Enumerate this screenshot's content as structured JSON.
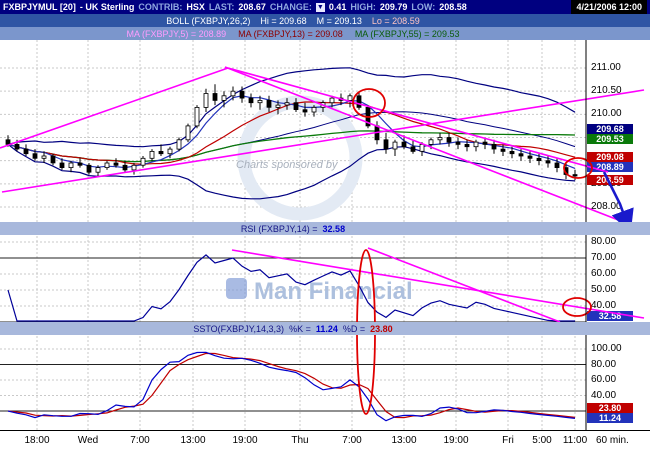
{
  "header": {
    "symbol": "FXBPJYMUL [20]",
    "desc": "- UK Sterling",
    "contrib_label": "CONTRIB:",
    "contrib_value": "HSX",
    "last_label": "LAST:",
    "last_value": "208.67",
    "change_label": "CHANGE:",
    "change_arrow": "▼",
    "change_value": "0.41",
    "high_label": "HIGH:",
    "high_value": "209.79",
    "low_label": "LOW:",
    "low_value": "208.58",
    "datetime": "4/21/2006 12:00"
  },
  "boll_bar": {
    "label": "BOLL (FXBPJY,26,2)",
    "hi": "Hi = 209.68",
    "m": "M = 209.13",
    "lo": "Lo = 208.59"
  },
  "ma_bar": {
    "ma5": "MA (FXBPJY,5) = 208.89",
    "ma13": "MA (FXBPJY,13) = 209.08",
    "ma55": "MA (FXBPJY,55) = 209.53"
  },
  "rsi_bar": {
    "label": "RSI (FXBPJY,14) =",
    "value": "32.58"
  },
  "ssto_bar": {
    "label": "SSTO(FXBPJY,14,3,3)",
    "k_label": "%K =",
    "k_value": "11.24",
    "d_label": "%D =",
    "d_value": "23.80"
  },
  "watermark": {
    "line1": "Charts sponsored by",
    "brand": "Man Financial"
  },
  "time_axis": {
    "labels": [
      "18:00",
      "Wed",
      "7:00",
      "13:00",
      "19:00",
      "Thu",
      "7:00",
      "13:00",
      "19:00",
      "Fri",
      "5:00",
      "11:00"
    ],
    "interval": "60 min."
  },
  "axes": {
    "main_ticks": [
      "211.00",
      "210.50",
      "210.00",
      "209.50",
      "209.00",
      "208.50",
      "208.00"
    ],
    "main_badges": [
      {
        "text": "209.68",
        "color": "#000080"
      },
      {
        "text": "209.53",
        "color": "#0a7a0a"
      },
      {
        "text": "209.08",
        "color": "#c00000"
      },
      {
        "text": "208.89",
        "color": "#2233bb"
      },
      {
        "text": "208.59",
        "color": "#c00000"
      }
    ],
    "rsi_ticks": [
      "80.00",
      "70.00",
      "60.00",
      "50.00",
      "40.00"
    ],
    "rsi_badge": {
      "text": "32.58",
      "color": "#2233bb"
    },
    "ssto_ticks": [
      "100.00",
      "80.00",
      "60.00",
      "40.00",
      "20.00"
    ],
    "ssto_badges": [
      {
        "text": "23.80",
        "color": "#c00000"
      },
      {
        "text": "11.24",
        "color": "#2233bb"
      }
    ]
  },
  "chart_data": [
    {
      "type": "candlestick",
      "title": "FXBPJYMUL [20] - UK Sterling",
      "interval": "60 min.",
      "x_labels": [
        "18:00",
        "Wed",
        "7:00",
        "13:00",
        "19:00",
        "Thu",
        "7:00",
        "13:00",
        "19:00",
        "Fri",
        "5:00",
        "11:00"
      ],
      "ylim": [
        207.7,
        211.6
      ],
      "y_ticks": [
        211.0,
        210.5,
        210.0,
        209.5,
        209.0,
        208.5,
        208.0
      ],
      "overlays": [
        {
          "name": "BOLL(FXBPJY,26,2)",
          "hi": 209.68,
          "mid": 209.13,
          "lo": 208.59,
          "color": "#000080"
        },
        {
          "name": "MA(FXBPJY,5)",
          "last": 208.89,
          "color": "#2233bb"
        },
        {
          "name": "MA(FXBPJY,13)",
          "last": 209.08,
          "color": "#c00000"
        },
        {
          "name": "MA(FXBPJY,55)",
          "last": 209.53,
          "color": "#0a7a0a"
        }
      ],
      "ohlc": [
        [
          209.45,
          209.55,
          209.3,
          209.35
        ],
        [
          209.35,
          209.45,
          209.2,
          209.25
        ],
        [
          209.25,
          209.35,
          209.1,
          209.15
        ],
        [
          209.15,
          209.25,
          209.0,
          209.05
        ],
        [
          209.05,
          209.2,
          208.95,
          209.1
        ],
        [
          209.1,
          209.15,
          208.9,
          208.95
        ],
        [
          208.95,
          209.05,
          208.8,
          208.85
        ],
        [
          208.85,
          209.0,
          208.75,
          208.95
        ],
        [
          208.95,
          209.05,
          208.85,
          208.9
        ],
        [
          208.9,
          208.95,
          208.7,
          208.75
        ],
        [
          208.75,
          208.9,
          208.65,
          208.85
        ],
        [
          208.85,
          209.0,
          208.8,
          208.95
        ],
        [
          208.95,
          209.05,
          208.85,
          208.9
        ],
        [
          208.9,
          209.0,
          208.75,
          208.8
        ],
        [
          208.8,
          208.95,
          208.7,
          208.9
        ],
        [
          208.9,
          209.1,
          208.85,
          209.05
        ],
        [
          209.05,
          209.25,
          209.0,
          209.2
        ],
        [
          209.2,
          209.35,
          209.1,
          209.15
        ],
        [
          209.15,
          209.3,
          209.05,
          209.25
        ],
        [
          209.25,
          209.5,
          209.2,
          209.45
        ],
        [
          209.45,
          209.8,
          209.4,
          209.75
        ],
        [
          209.75,
          210.2,
          209.7,
          210.15
        ],
        [
          210.15,
          210.55,
          210.05,
          210.45
        ],
        [
          210.45,
          210.65,
          210.2,
          210.3
        ],
        [
          210.3,
          210.5,
          210.15,
          210.4
        ],
        [
          210.4,
          210.6,
          210.3,
          210.5
        ],
        [
          210.5,
          210.6,
          210.25,
          210.35
        ],
        [
          210.35,
          210.45,
          210.15,
          210.25
        ],
        [
          210.25,
          210.4,
          210.1,
          210.3
        ],
        [
          210.3,
          210.4,
          210.05,
          210.15
        ],
        [
          210.15,
          210.3,
          210.0,
          210.2
        ],
        [
          210.2,
          210.35,
          210.1,
          210.25
        ],
        [
          210.25,
          210.35,
          210.05,
          210.1
        ],
        [
          210.1,
          210.25,
          209.95,
          210.05
        ],
        [
          210.05,
          210.2,
          209.95,
          210.15
        ],
        [
          210.15,
          210.3,
          210.05,
          210.25
        ],
        [
          210.25,
          210.4,
          210.15,
          210.35
        ],
        [
          210.35,
          210.45,
          210.2,
          210.3
        ],
        [
          210.3,
          210.45,
          210.15,
          210.4
        ],
        [
          210.4,
          210.5,
          210.1,
          210.15
        ],
        [
          210.15,
          210.2,
          209.7,
          209.75
        ],
        [
          209.75,
          209.85,
          209.35,
          209.45
        ],
        [
          209.45,
          209.6,
          209.15,
          209.25
        ],
        [
          209.25,
          209.45,
          209.1,
          209.4
        ],
        [
          209.4,
          209.55,
          209.25,
          209.3
        ],
        [
          209.3,
          209.45,
          209.15,
          209.2
        ],
        [
          209.2,
          209.4,
          209.1,
          209.35
        ],
        [
          209.35,
          209.5,
          209.25,
          209.45
        ],
        [
          209.45,
          209.6,
          209.35,
          209.5
        ],
        [
          209.5,
          209.6,
          209.3,
          209.4
        ],
        [
          209.4,
          209.5,
          209.25,
          209.35
        ],
        [
          209.35,
          209.45,
          209.2,
          209.3
        ],
        [
          209.3,
          209.45,
          209.2,
          209.4
        ],
        [
          209.4,
          209.5,
          209.25,
          209.35
        ],
        [
          209.35,
          209.45,
          209.15,
          209.25
        ],
        [
          209.25,
          209.35,
          209.1,
          209.2
        ],
        [
          209.2,
          209.3,
          209.05,
          209.15
        ],
        [
          209.15,
          209.25,
          209.0,
          209.1
        ],
        [
          209.1,
          209.2,
          208.95,
          209.05
        ],
        [
          209.05,
          209.15,
          208.9,
          209.0
        ],
        [
          209.0,
          209.1,
          208.85,
          208.95
        ],
        [
          208.95,
          209.05,
          208.75,
          208.85
        ],
        [
          208.85,
          208.95,
          208.6,
          208.7
        ],
        [
          208.7,
          208.8,
          208.58,
          208.67
        ]
      ]
    },
    {
      "type": "line",
      "name": "RSI(FXBPJY,14)",
      "last": 32.58,
      "color": "#000099",
      "levels": [
        70,
        30
      ],
      "ylim": [
        30,
        85
      ],
      "y_ticks": [
        80,
        70,
        60,
        50,
        40
      ]
    },
    {
      "type": "line",
      "name": "SSTO(FXBPJY,14,3,3)",
      "levels": [
        80,
        20
      ],
      "ylim": [
        0,
        110
      ],
      "y_ticks": [
        100,
        80,
        60,
        40,
        20
      ],
      "series": [
        {
          "name": "%K",
          "last": 11.24,
          "color": "#0000cc"
        },
        {
          "name": "%D",
          "last": 23.8,
          "color": "#c00000"
        }
      ]
    }
  ]
}
